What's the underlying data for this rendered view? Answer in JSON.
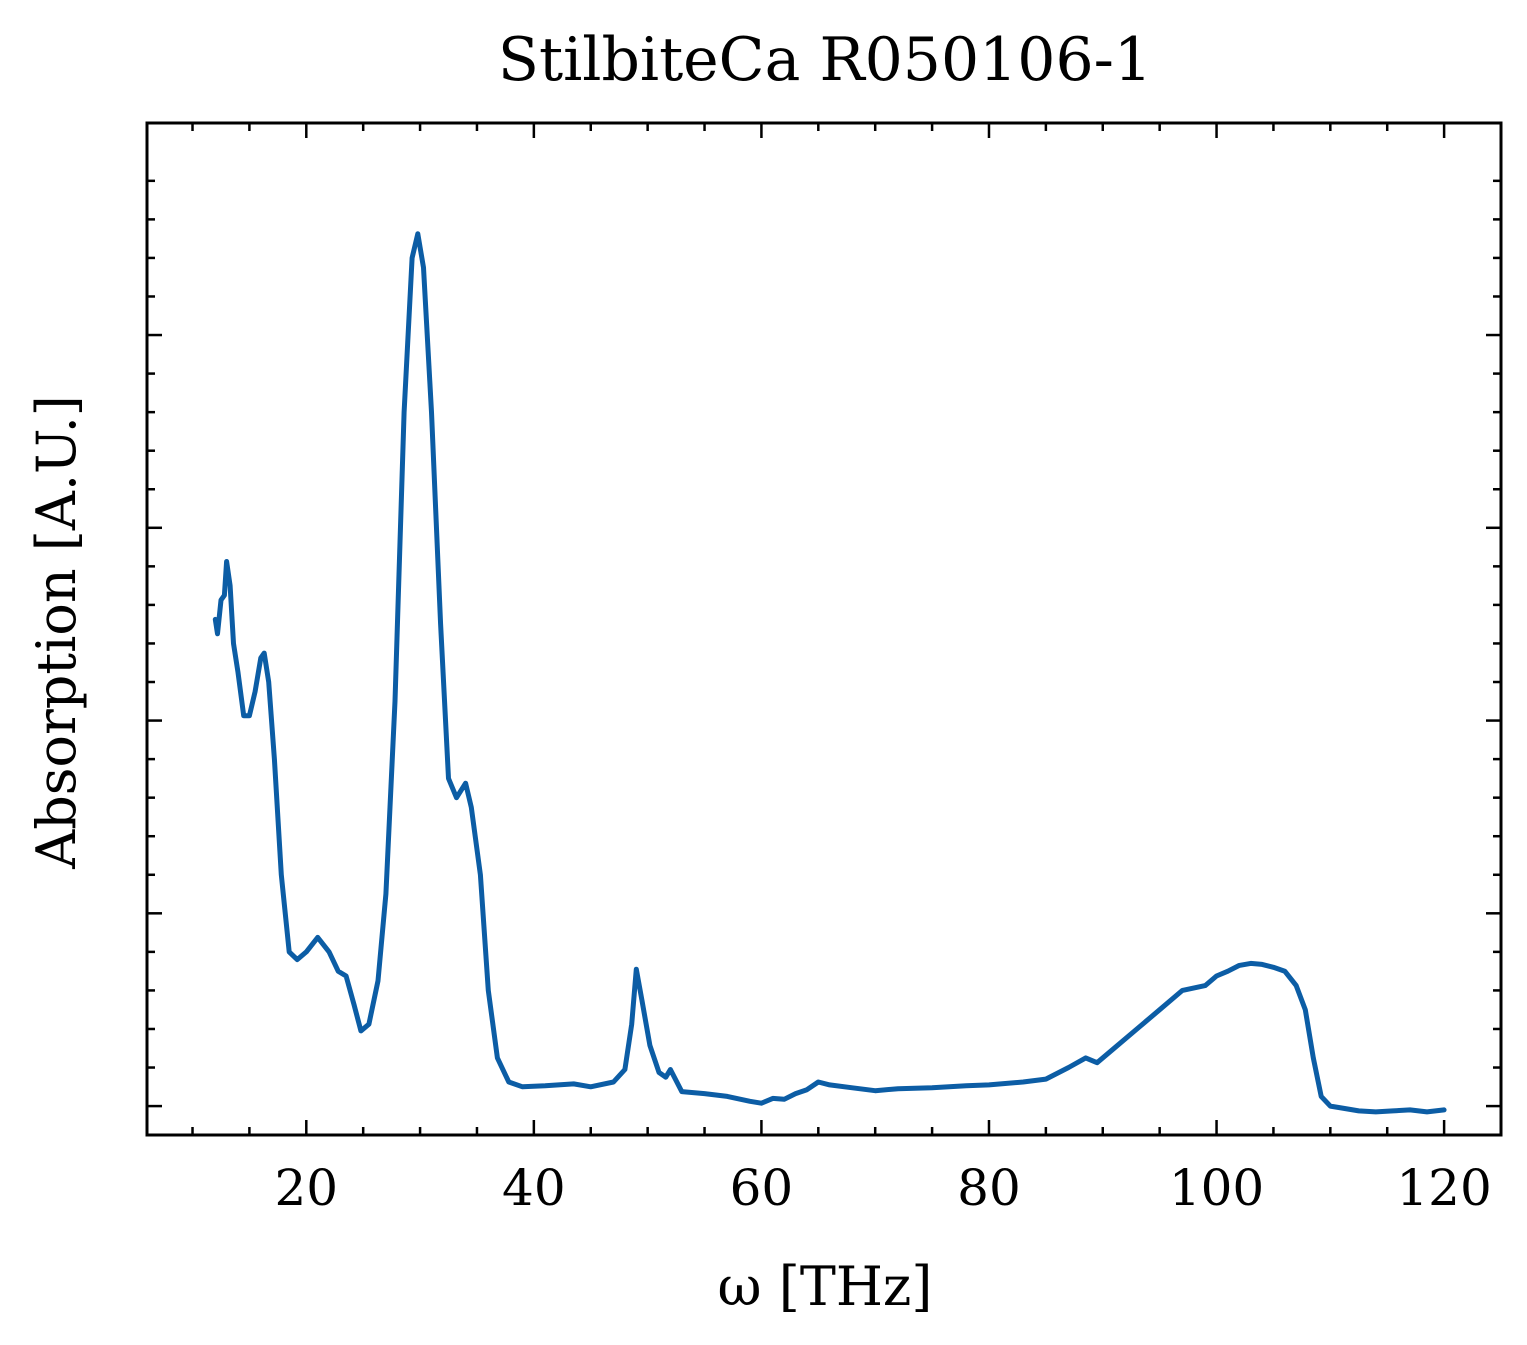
{
  "chart_data": {
    "type": "line",
    "title": "StilbiteCa R050106-1",
    "xlabel": "ω [THz]",
    "ylabel": "Absorption [A.U.]",
    "xlim": [
      6,
      125
    ],
    "ylim": [
      -0.03,
      1.02
    ],
    "x_ticks": [
      20,
      40,
      60,
      80,
      100,
      120
    ],
    "x_tick_labels": [
      "20",
      "40",
      "60",
      "80",
      "100",
      "120"
    ],
    "y_ticks_major": [
      0.0,
      0.2,
      0.4,
      0.6,
      0.8
    ],
    "y_tick_labels_shown": false,
    "grid": false,
    "legend": "none",
    "color": "#0C5DA5",
    "series": [
      {
        "x": [
          12.0,
          12.2,
          12.5,
          12.8,
          13.0,
          13.3,
          13.6,
          14.0,
          14.5,
          15.0,
          15.5,
          16.0,
          16.3,
          16.7,
          17.2,
          17.8,
          18.5,
          19.2,
          20.0,
          21.0,
          22.0,
          22.8,
          23.5,
          24.2,
          24.8,
          25.5,
          26.3,
          27.0,
          27.8,
          28.6,
          29.3,
          29.8,
          30.3,
          31.0,
          31.8,
          32.5,
          33.2,
          34.0,
          34.5,
          35.3,
          36.0,
          36.8,
          37.8,
          39.0,
          41.0,
          43.5,
          45.0,
          47.0,
          48.0,
          48.6,
          49.0,
          49.5,
          50.2,
          51.0,
          51.6,
          52.0,
          53.0,
          55.0,
          57.0,
          59.0,
          60.0,
          61.0,
          62.0,
          63.0,
          64.0,
          65.0,
          66.0,
          68.0,
          70.0,
          72.0,
          75.0,
          78.0,
          80.0,
          83.0,
          85.0,
          87.0,
          88.5,
          89.5,
          91.0,
          93.0,
          95.0,
          97.0,
          99.0,
          100.0,
          101.0,
          102.0,
          103.0,
          104.0,
          105.0,
          106.0,
          107.0,
          107.8,
          108.5,
          109.2,
          110.0,
          111.0,
          112.5,
          114.0,
          115.5,
          117.0,
          118.5,
          120.0
        ],
        "y": [
          0.505,
          0.49,
          0.525,
          0.53,
          0.565,
          0.54,
          0.48,
          0.45,
          0.405,
          0.405,
          0.43,
          0.465,
          0.47,
          0.44,
          0.36,
          0.24,
          0.16,
          0.152,
          0.16,
          0.175,
          0.16,
          0.14,
          0.135,
          0.105,
          0.078,
          0.085,
          0.13,
          0.22,
          0.42,
          0.72,
          0.88,
          0.905,
          0.87,
          0.72,
          0.5,
          0.34,
          0.32,
          0.335,
          0.31,
          0.24,
          0.12,
          0.05,
          0.025,
          0.02,
          0.021,
          0.023,
          0.02,
          0.025,
          0.038,
          0.085,
          0.142,
          0.11,
          0.063,
          0.035,
          0.03,
          0.038,
          0.015,
          0.013,
          0.01,
          0.005,
          0.003,
          0.008,
          0.007,
          0.013,
          0.017,
          0.025,
          0.022,
          0.019,
          0.016,
          0.018,
          0.019,
          0.021,
          0.022,
          0.025,
          0.028,
          0.04,
          0.05,
          0.045,
          0.06,
          0.08,
          0.1,
          0.12,
          0.125,
          0.135,
          0.14,
          0.146,
          0.148,
          0.147,
          0.144,
          0.14,
          0.125,
          0.1,
          0.05,
          0.01,
          0.0,
          -0.002,
          -0.005,
          -0.006,
          -0.005,
          -0.004,
          -0.006,
          -0.004
        ]
      }
    ]
  }
}
